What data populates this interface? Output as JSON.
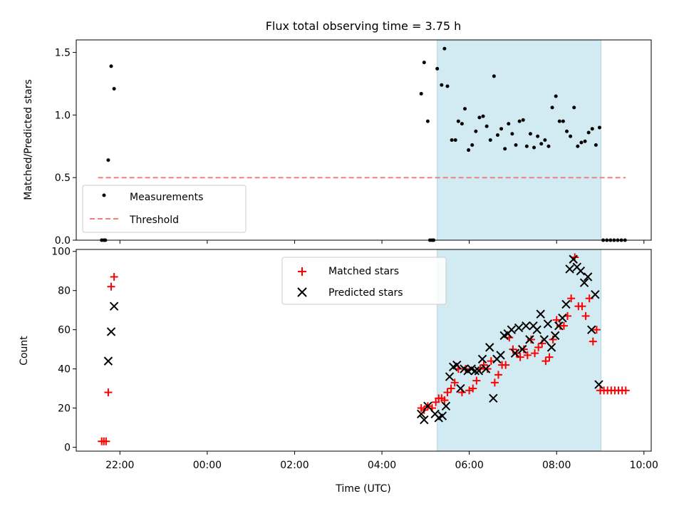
{
  "title": "Flux total observing time = 3.75 h",
  "colors": {
    "measurements": "#000000",
    "threshold": "#f08080",
    "matched": "#ff0000",
    "predicted": "#000000",
    "shade": "#add8e6"
  },
  "chart_data": [
    {
      "type": "scatter",
      "ylabel": "Matched/Predicted stars",
      "ylim": [
        0,
        1.6
      ],
      "yticks": [
        0.0,
        0.5,
        1.0,
        1.5
      ],
      "ytick_labels": [
        "0.0",
        "0.5",
        "1.0",
        "1.5"
      ],
      "shaded_region": [
        "05:16",
        "09:01"
      ],
      "legend": {
        "placement": "lower-left",
        "entries": [
          "Measurements",
          "Threshold"
        ]
      },
      "threshold": {
        "name": "Threshold",
        "y": 0.5,
        "x": [
          "21:30",
          "09:35"
        ]
      },
      "series": [
        {
          "name": "Measurements",
          "points": [
            [
              "21:35",
              0
            ],
            [
              "21:38",
              0
            ],
            [
              "21:40",
              0
            ],
            [
              "21:44",
              0.64
            ],
            [
              "21:48",
              1.39
            ],
            [
              "21:52",
              1.21
            ],
            [
              "04:54",
              1.17
            ],
            [
              "04:58",
              1.42
            ],
            [
              "05:03",
              0.95
            ],
            [
              "05:06",
              0
            ],
            [
              "05:09",
              0
            ],
            [
              "05:11",
              0
            ],
            [
              "05:16",
              1.37
            ],
            [
              "05:22",
              1.24
            ],
            [
              "05:26",
              1.53
            ],
            [
              "05:30",
              1.23
            ],
            [
              "05:36",
              0.8
            ],
            [
              "05:41",
              0.8
            ],
            [
              "05:45",
              0.95
            ],
            [
              "05:50",
              0.93
            ],
            [
              "05:54",
              1.05
            ],
            [
              "05:59",
              0.72
            ],
            [
              "06:04",
              0.76
            ],
            [
              "06:09",
              0.87
            ],
            [
              "06:14",
              0.98
            ],
            [
              "06:19",
              0.99
            ],
            [
              "06:24",
              0.91
            ],
            [
              "06:29",
              0.8
            ],
            [
              "06:34",
              1.31
            ],
            [
              "06:39",
              0.84
            ],
            [
              "06:44",
              0.89
            ],
            [
              "06:49",
              0.73
            ],
            [
              "06:54",
              0.93
            ],
            [
              "06:59",
              0.85
            ],
            [
              "07:04",
              0.76
            ],
            [
              "07:09",
              0.95
            ],
            [
              "07:14",
              0.96
            ],
            [
              "07:19",
              0.75
            ],
            [
              "07:24",
              0.85
            ],
            [
              "07:29",
              0.74
            ],
            [
              "07:34",
              0.83
            ],
            [
              "07:39",
              0.77
            ],
            [
              "07:44",
              0.8
            ],
            [
              "07:49",
              0.75
            ],
            [
              "07:54",
              1.06
            ],
            [
              "07:59",
              1.15
            ],
            [
              "08:04",
              0.95
            ],
            [
              "08:09",
              0.95
            ],
            [
              "08:14",
              0.87
            ],
            [
              "08:19",
              0.83
            ],
            [
              "08:24",
              1.06
            ],
            [
              "08:29",
              0.75
            ],
            [
              "08:34",
              0.78
            ],
            [
              "08:39",
              0.79
            ],
            [
              "08:44",
              0.86
            ],
            [
              "08:49",
              0.89
            ],
            [
              "08:54",
              0.76
            ],
            [
              "08:59",
              0.9
            ],
            [
              "09:04",
              0
            ],
            [
              "09:09",
              0
            ],
            [
              "09:14",
              0
            ],
            [
              "09:19",
              0
            ],
            [
              "09:24",
              0
            ],
            [
              "09:29",
              0
            ],
            [
              "09:34",
              0
            ]
          ]
        }
      ]
    },
    {
      "type": "scatter",
      "ylabel": "Count",
      "xlabel": "Time (UTC)",
      "ylim": [
        -2,
        101
      ],
      "yticks": [
        0,
        20,
        40,
        60,
        80,
        100
      ],
      "ytick_labels": [
        "0",
        "20",
        "40",
        "60",
        "80",
        "100"
      ],
      "xlim": [
        "21:00",
        "10:10"
      ],
      "xticks": [
        "22:00",
        "00:00",
        "02:00",
        "04:00",
        "06:00",
        "08:00",
        "10:00"
      ],
      "shaded_region": [
        "05:16",
        "09:01"
      ],
      "legend": {
        "placement": "upper-center",
        "entries": [
          "Matched stars",
          "Predicted stars"
        ]
      },
      "series": [
        {
          "name": "Matched stars",
          "marker": "plus",
          "points": [
            [
              "21:35",
              3
            ],
            [
              "21:38",
              3
            ],
            [
              "21:41",
              3
            ],
            [
              "21:44",
              28
            ],
            [
              "21:48",
              82
            ],
            [
              "21:52",
              87
            ],
            [
              "04:54",
              20
            ],
            [
              "04:58",
              19
            ],
            [
              "05:03",
              21
            ],
            [
              "05:09",
              20
            ],
            [
              "05:14",
              23
            ],
            [
              "05:18",
              25
            ],
            [
              "05:22",
              25
            ],
            [
              "05:26",
              24
            ],
            [
              "05:30",
              28
            ],
            [
              "05:35",
              30
            ],
            [
              "05:40",
              33
            ],
            [
              "05:45",
              40
            ],
            [
              "05:50",
              28
            ],
            [
              "05:55",
              40
            ],
            [
              "06:00",
              29
            ],
            [
              "06:05",
              30
            ],
            [
              "06:10",
              34
            ],
            [
              "06:15",
              40
            ],
            [
              "06:20",
              42
            ],
            [
              "06:25",
              40
            ],
            [
              "06:30",
              44
            ],
            [
              "06:35",
              33
            ],
            [
              "06:40",
              37
            ],
            [
              "06:45",
              42
            ],
            [
              "06:50",
              42
            ],
            [
              "06:55",
              56
            ],
            [
              "07:00",
              50
            ],
            [
              "07:05",
              48
            ],
            [
              "07:10",
              46
            ],
            [
              "07:15",
              50
            ],
            [
              "07:20",
              47
            ],
            [
              "07:25",
              55
            ],
            [
              "07:30",
              48
            ],
            [
              "07:35",
              51
            ],
            [
              "07:40",
              53
            ],
            [
              "07:45",
              44
            ],
            [
              "07:50",
              46
            ],
            [
              "07:55",
              55
            ],
            [
              "08:00",
              65
            ],
            [
              "08:05",
              62
            ],
            [
              "08:10",
              62
            ],
            [
              "08:15",
              67
            ],
            [
              "08:20",
              76
            ],
            [
              "08:25",
              97
            ],
            [
              "08:30",
              72
            ],
            [
              "08:35",
              72
            ],
            [
              "08:40",
              67
            ],
            [
              "08:45",
              76
            ],
            [
              "08:50",
              54
            ],
            [
              "08:55",
              60
            ],
            [
              "09:00",
              29
            ],
            [
              "09:05",
              29
            ],
            [
              "09:10",
              29
            ],
            [
              "09:15",
              29
            ],
            [
              "09:20",
              29
            ],
            [
              "09:25",
              29
            ],
            [
              "09:30",
              29
            ],
            [
              "09:35",
              29
            ]
          ]
        },
        {
          "name": "Predicted stars",
          "marker": "x",
          "points": [
            [
              "21:44",
              44
            ],
            [
              "21:48",
              59
            ],
            [
              "21:52",
              72
            ],
            [
              "04:54",
              17
            ],
            [
              "04:58",
              14
            ],
            [
              "05:03",
              21
            ],
            [
              "05:13",
              17
            ],
            [
              "05:18",
              15
            ],
            [
              "05:23",
              16
            ],
            [
              "05:28",
              21
            ],
            [
              "05:33",
              36
            ],
            [
              "05:38",
              41
            ],
            [
              "05:43",
              42
            ],
            [
              "05:48",
              30
            ],
            [
              "05:53",
              40
            ],
            [
              "05:58",
              39
            ],
            [
              "06:03",
              40
            ],
            [
              "06:08",
              39
            ],
            [
              "06:13",
              39
            ],
            [
              "06:18",
              45
            ],
            [
              "06:23",
              40
            ],
            [
              "06:28",
              51
            ],
            [
              "06:33",
              25
            ],
            [
              "06:38",
              45
            ],
            [
              "06:43",
              47
            ],
            [
              "06:48",
              57
            ],
            [
              "06:53",
              58
            ],
            [
              "06:58",
              60
            ],
            [
              "07:03",
              48
            ],
            [
              "07:08",
              61
            ],
            [
              "07:13",
              50
            ],
            [
              "07:18",
              62
            ],
            [
              "07:23",
              55
            ],
            [
              "07:28",
              62
            ],
            [
              "07:33",
              60
            ],
            [
              "07:38",
              68
            ],
            [
              "07:43",
              55
            ],
            [
              "07:48",
              63
            ],
            [
              "07:53",
              51
            ],
            [
              "07:58",
              57
            ],
            [
              "08:03",
              62
            ],
            [
              "08:08",
              66
            ],
            [
              "08:13",
              73
            ],
            [
              "08:18",
              91
            ],
            [
              "08:23",
              96
            ],
            [
              "08:28",
              92
            ],
            [
              "08:33",
              90
            ],
            [
              "08:38",
              84
            ],
            [
              "08:43",
              87
            ],
            [
              "08:48",
              60
            ],
            [
              "08:53",
              78
            ],
            [
              "08:58",
              32
            ]
          ]
        }
      ]
    }
  ]
}
